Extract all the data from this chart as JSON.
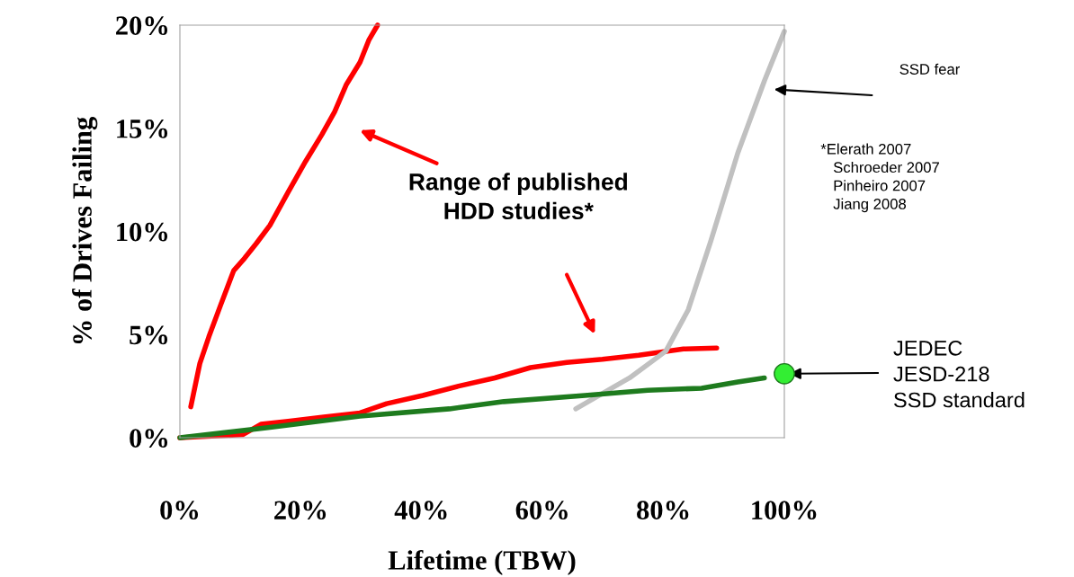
{
  "chart_data": {
    "type": "line",
    "xlabel": "Lifetime (TBW)",
    "ylabel": "% of Drives Failing",
    "xlim": [
      0,
      100
    ],
    "ylim": [
      0,
      20
    ],
    "xticks": [
      {
        "value": 0,
        "label": "0%"
      },
      {
        "value": 20,
        "label": "20%"
      },
      {
        "value": 40,
        "label": "40%"
      },
      {
        "value": 60,
        "label": "60%"
      },
      {
        "value": 80,
        "label": "80%"
      },
      {
        "value": 100,
        "label": "100%"
      }
    ],
    "yticks": [
      {
        "value": 0,
        "label": "0%"
      },
      {
        "value": 5,
        "label": "5%"
      },
      {
        "value": 10,
        "label": "10%"
      },
      {
        "value": 15,
        "label": "15%"
      },
      {
        "value": 20,
        "label": "20%"
      }
    ],
    "grid": false,
    "legend": false,
    "series": [
      {
        "color": "#ff0000",
        "x": [
          1.8,
          3.3,
          4.8,
          6.7,
          8.9,
          10.7,
          12.6,
          14.9,
          17.9,
          20.8,
          23.5,
          25.6,
          27.5,
          29.8,
          31.3,
          32.7
        ],
        "values": [
          1.5,
          3.6,
          4.9,
          6.4,
          8.1,
          8.7,
          9.4,
          10.3,
          11.9,
          13.4,
          14.7,
          15.8,
          17.1,
          18.2,
          19.3,
          20
        ]
      },
      {
        "color": "#ff0000",
        "x": [
          0,
          10.4,
          13.4,
          17.9,
          23.8,
          29.8,
          34.2,
          40.2,
          46.1,
          52.1,
          58,
          64,
          69.9,
          75.9,
          83.3,
          88.8
        ],
        "values": [
          0,
          0.15,
          0.65,
          0.8,
          1.0,
          1.2,
          1.65,
          2.05,
          2.5,
          2.9,
          3.4,
          3.65,
          3.8,
          4.0,
          4.3,
          4.35
        ]
      },
      {
        "color": "#c0c0c0",
        "x": [
          65.5,
          74.4,
          80.4,
          84.1,
          87.8,
          92.3,
          96.7,
          100
        ],
        "values": [
          1.4,
          2.9,
          4.2,
          6.2,
          9.5,
          13.8,
          17.3,
          19.7
        ]
      },
      {
        "color": "#1e7b1e",
        "x": [
          0,
          14.9,
          29.8,
          44.6,
          53.6,
          67,
          77.4,
          86.3,
          92.3,
          96.7
        ],
        "values": [
          0,
          0.5,
          1.05,
          1.4,
          1.75,
          2.05,
          2.3,
          2.4,
          2.7,
          2.9
        ]
      },
      {
        "type": "scatter",
        "color": "#33ee33",
        "x": [
          100
        ],
        "values": [
          3.1
        ],
        "marker": "circle"
      }
    ],
    "annotations": [
      "SSD fear",
      "Range of published\nHDD studies*",
      {
        "text": "*Elerath 2007\n   Schroeder 2007\n   Pinheiro 2007\n   Jiang 2008"
      },
      {
        "text": "JEDEC\nJESD-218\nSSD standard",
        "x": 100,
        "y": 3.1
      }
    ]
  }
}
